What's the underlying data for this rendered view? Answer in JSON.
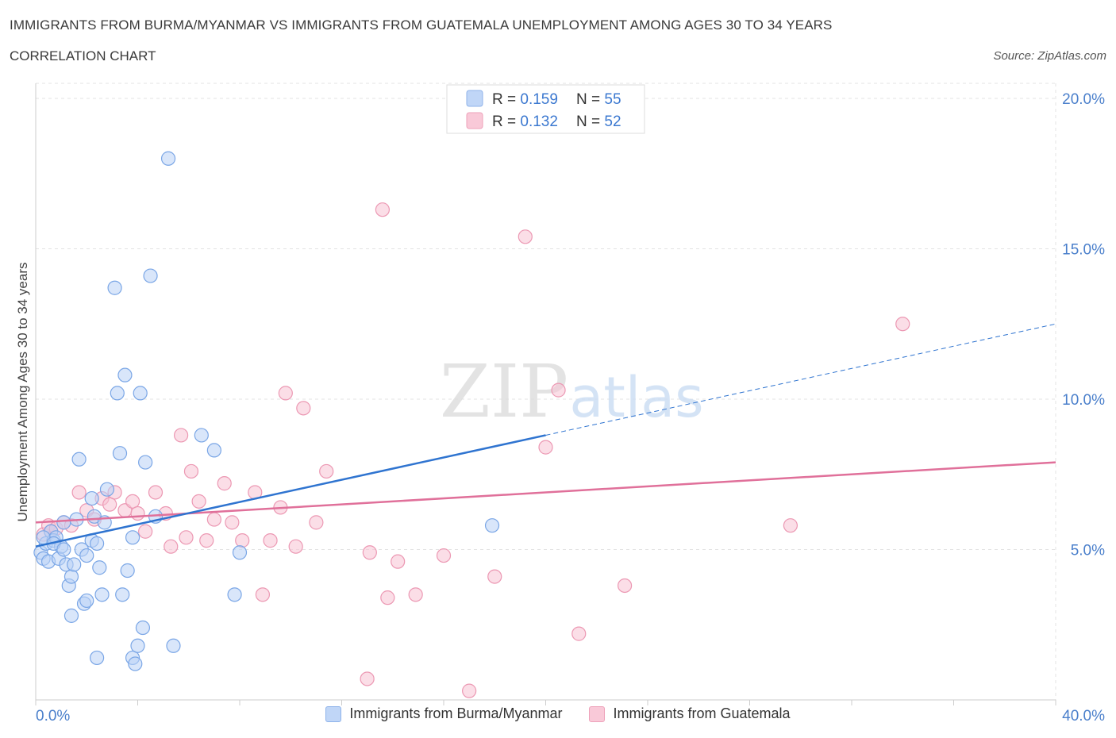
{
  "header": {
    "title": "IMMIGRANTS FROM BURMA/MYANMAR VS IMMIGRANTS FROM GUATEMALA UNEMPLOYMENT AMONG AGES 30 TO 34 YEARS",
    "subtitle": "CORRELATION CHART",
    "source": "Source: ZipAtlas.com"
  },
  "watermark": {
    "zip": "ZIP",
    "atlas": "atlas"
  },
  "colors": {
    "blue_fill": "#b9d1f5",
    "blue_stroke": "#7aa6e6",
    "blue_line": "#2f74d0",
    "pink_fill": "#f8c3d4",
    "pink_stroke": "#ec98b3",
    "pink_line": "#e0709a",
    "axis_label": "#4a7fcb",
    "grid": "#e3e3e3"
  },
  "legend_top": [
    {
      "r_label": "R = ",
      "r_value": "0.159",
      "n_label": "N = ",
      "n_value": "55",
      "color": "blue"
    },
    {
      "r_label": "R = ",
      "r_value": "0.132",
      "n_label": "N = ",
      "n_value": "52",
      "color": "pink"
    }
  ],
  "legend_bottom": [
    {
      "label": "Immigrants from Burma/Myanmar",
      "color": "blue"
    },
    {
      "label": "Immigrants from Guatemala",
      "color": "pink"
    }
  ],
  "chart_data": {
    "type": "scatter",
    "xlabel": "",
    "ylabel": "Unemployment Among Ages 30 to 34 years",
    "xlim": [
      0,
      40
    ],
    "ylim": [
      0,
      20.5
    ],
    "x_ticks": [
      {
        "value": 0,
        "label": "0.0%"
      },
      {
        "value": 40,
        "label": "40.0%"
      }
    ],
    "y_ticks": [
      {
        "value": 5,
        "label": "5.0%"
      },
      {
        "value": 10,
        "label": "10.0%"
      },
      {
        "value": 15,
        "label": "15.0%"
      },
      {
        "value": 20,
        "label": "20.0%"
      }
    ],
    "grid": true,
    "series": [
      {
        "color": "blue",
        "points": [
          [
            0.2,
            4.9
          ],
          [
            0.3,
            4.7
          ],
          [
            0.4,
            5.2
          ],
          [
            0.5,
            4.6
          ],
          [
            0.6,
            5.6
          ],
          [
            0.7,
            5.3
          ],
          [
            0.8,
            5.4
          ],
          [
            0.9,
            4.7
          ],
          [
            1.0,
            5.1
          ],
          [
            1.1,
            5.9
          ],
          [
            1.2,
            4.5
          ],
          [
            1.3,
            3.8
          ],
          [
            1.4,
            4.1
          ],
          [
            1.5,
            4.5
          ],
          [
            1.4,
            2.8
          ],
          [
            1.6,
            6.0
          ],
          [
            1.7,
            8.0
          ],
          [
            1.8,
            5.0
          ],
          [
            1.9,
            3.2
          ],
          [
            2.0,
            4.8
          ],
          [
            2.2,
            5.3
          ],
          [
            2.2,
            6.7
          ],
          [
            2.3,
            6.1
          ],
          [
            2.4,
            5.2
          ],
          [
            2.5,
            4.4
          ],
          [
            2.6,
            3.5
          ],
          [
            2.7,
            5.9
          ],
          [
            2.8,
            7.0
          ],
          [
            2.4,
            1.4
          ],
          [
            3.1,
            13.7
          ],
          [
            3.2,
            10.2
          ],
          [
            3.3,
            8.2
          ],
          [
            3.4,
            3.5
          ],
          [
            3.5,
            10.8
          ],
          [
            3.6,
            4.3
          ],
          [
            3.8,
            5.4
          ],
          [
            3.8,
            1.4
          ],
          [
            3.9,
            1.2
          ],
          [
            4.0,
            1.8
          ],
          [
            4.1,
            10.2
          ],
          [
            4.2,
            2.4
          ],
          [
            4.3,
            7.9
          ],
          [
            4.5,
            14.1
          ],
          [
            4.7,
            6.1
          ],
          [
            5.2,
            18.0
          ],
          [
            5.4,
            1.8
          ],
          [
            6.5,
            8.8
          ],
          [
            7.0,
            8.3
          ],
          [
            7.8,
            3.5
          ],
          [
            8.0,
            4.9
          ],
          [
            17.9,
            5.8
          ],
          [
            0.3,
            5.4
          ],
          [
            0.7,
            5.2
          ],
          [
            1.1,
            5.0
          ],
          [
            2.0,
            3.3
          ]
        ]
      },
      {
        "color": "pink",
        "points": [
          [
            0.3,
            5.5
          ],
          [
            0.5,
            5.8
          ],
          [
            0.6,
            5.6
          ],
          [
            0.8,
            5.7
          ],
          [
            1.1,
            5.9
          ],
          [
            1.4,
            5.8
          ],
          [
            1.7,
            6.9
          ],
          [
            2.0,
            6.3
          ],
          [
            2.3,
            6.0
          ],
          [
            2.6,
            6.7
          ],
          [
            2.9,
            6.5
          ],
          [
            3.1,
            6.9
          ],
          [
            3.5,
            6.3
          ],
          [
            3.8,
            6.6
          ],
          [
            4.0,
            6.2
          ],
          [
            4.3,
            5.6
          ],
          [
            4.7,
            6.9
          ],
          [
            5.1,
            6.2
          ],
          [
            5.3,
            5.1
          ],
          [
            5.7,
            8.8
          ],
          [
            5.9,
            5.4
          ],
          [
            6.1,
            7.6
          ],
          [
            6.4,
            6.6
          ],
          [
            6.7,
            5.3
          ],
          [
            7.0,
            6.0
          ],
          [
            7.4,
            7.2
          ],
          [
            7.7,
            5.9
          ],
          [
            8.1,
            5.3
          ],
          [
            8.6,
            6.9
          ],
          [
            8.9,
            3.5
          ],
          [
            9.2,
            5.3
          ],
          [
            9.6,
            6.4
          ],
          [
            9.8,
            10.2
          ],
          [
            10.2,
            5.1
          ],
          [
            10.5,
            9.7
          ],
          [
            11.0,
            5.9
          ],
          [
            11.4,
            7.6
          ],
          [
            13.0,
            0.7
          ],
          [
            13.1,
            4.9
          ],
          [
            13.6,
            16.3
          ],
          [
            13.8,
            3.4
          ],
          [
            14.2,
            4.6
          ],
          [
            14.9,
            3.5
          ],
          [
            16.0,
            4.8
          ],
          [
            17.0,
            0.3
          ],
          [
            18.0,
            4.1
          ],
          [
            19.2,
            15.4
          ],
          [
            20.0,
            8.4
          ],
          [
            20.5,
            10.3
          ],
          [
            21.3,
            2.2
          ],
          [
            23.1,
            3.8
          ],
          [
            29.6,
            5.8
          ]
        ],
        "extra_points": [
          [
            34.0,
            12.5
          ]
        ]
      }
    ],
    "trend_lines": [
      {
        "series": "blue",
        "x0": 0,
        "y0": 5.1,
        "x1": 20.0,
        "y1": 8.8,
        "dashed_to_x": 40,
        "dashed_to_y": 12.5
      },
      {
        "series": "pink",
        "x0": 0,
        "y0": 5.9,
        "x1": 40,
        "y1": 7.9
      }
    ]
  }
}
